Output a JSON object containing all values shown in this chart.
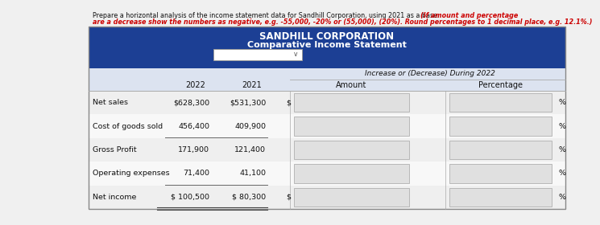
{
  "title_line1": "SANDHILL CORPORATION",
  "title_line2": "Comparative Income Statement",
  "header_note": "Increase or (Decrease) During 2022",
  "rows": [
    {
      "label": "Net sales",
      "val2022": "$628,300",
      "val2021": "$531,300",
      "has_dollar_sign": true,
      "underline_below": false,
      "double_underline": false
    },
    {
      "label": "Cost of goods sold",
      "val2022": "456,400",
      "val2021": "409,900",
      "has_dollar_sign": false,
      "underline_below": true,
      "double_underline": false
    },
    {
      "label": "Gross Profit",
      "val2022": "171,900",
      "val2021": "121,400",
      "has_dollar_sign": false,
      "underline_below": false,
      "double_underline": false
    },
    {
      "label": "Operating expenses",
      "val2022": "71,400",
      "val2021": "41,100",
      "has_dollar_sign": false,
      "underline_below": true,
      "double_underline": false
    },
    {
      "label": "Net income",
      "val2022": "$ 100,500",
      "val2021": "$ 80,300",
      "has_dollar_sign": true,
      "underline_below": false,
      "double_underline": true
    }
  ],
  "instr_normal": "Prepare a horizontal analysis of the income statement data for Sandhill Corporation, using 2021 as a base. ",
  "instr_bold_line1": "(If amount and percentage",
  "instr_bold_line2": "are a decrease show the numbers as negative, e.g. -55,000, -20% or (55,000), (20%). Round percentages to 1 decimal place, e.g. 12.1%.)",
  "header_bg": "#1c3f94",
  "subheader_bg": "#dce3f0",
  "col_header_bg": "#dce3f0",
  "row_bg_alt": "#efefef",
  "row_bg_white": "#f8f8f8",
  "input_box_color": "#e0e0e0",
  "input_box_border": "#b0b0b0",
  "text_dark": "#111111",
  "header_text": "#ffffff",
  "red_text": "#cc0000",
  "outer_border": "#888888",
  "divider_color": "#aaaaaa"
}
